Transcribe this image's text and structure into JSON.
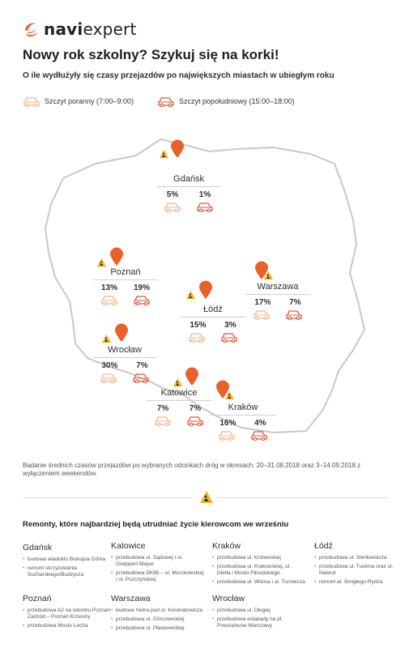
{
  "brand": {
    "name_bold": "navi",
    "name_light": "expert"
  },
  "headline": "Nowy rok szkolny? Szykuj się na korki!",
  "subheadline": "O ile wydłużyły się czasy przejazdów po największych miastach w ubiegłym roku",
  "legend": {
    "morning": "Szczyt poranny (7:00–9:00)",
    "afternoon": "Szczyt popołudniowy (15:00–18:00)"
  },
  "colors": {
    "accent": "#e8612c",
    "morning_car": "#f5b48f",
    "afternoon_car": "#e2573a",
    "warning": "#f2b823",
    "map_outline": "#c8c8c8"
  },
  "cities": [
    {
      "name": "Gdańsk",
      "morning": "5%",
      "afternoon": "1%"
    },
    {
      "name": "Poznań",
      "morning": "13%",
      "afternoon": "19%"
    },
    {
      "name": "Warszawa",
      "morning": "17%",
      "afternoon": "7%"
    },
    {
      "name": "Łódź",
      "morning": "15%",
      "afternoon": "3%"
    },
    {
      "name": "Wrocław",
      "morning": "30%",
      "afternoon": "7%"
    },
    {
      "name": "Katowice",
      "morning": "7%",
      "afternoon": "7%"
    },
    {
      "name": "Kraków",
      "morning": "16%",
      "afternoon": "4%"
    }
  ],
  "note": "Badanie średnich czasów przejazdów po wybranych odcinkach dróg w okresach: 20–31.08.2018 oraz 3–14.09.2018 z wyłączeniem weekendów.",
  "roadworks": {
    "title": "Remonty, które najbardziej będą utrudniać życie kierowcom we wrześniu",
    "groups": [
      {
        "city": "Gdańsk",
        "items": [
          "budowa wiaduktu Biskupia Górka",
          "remont skrzyżowania Sucharskiego/Budzysza"
        ]
      },
      {
        "city": "Katowice",
        "items": [
          "przebudowa ul. Sądowej i ul. Goeppert-Mayer",
          "przebudowa DK86 – ul. Murckowskiej i ul. Pszczyńskiej"
        ]
      },
      {
        "city": "Kraków",
        "items": [
          "przebudowa ul. Królewskiej",
          "przebudowa ul. Krakowskiej, ul. Dietla i Mostu Piłsudskiego",
          "przebudowa ul. Witosa i ul. Turowicza"
        ]
      },
      {
        "city": "Łódź",
        "items": [
          "przebudowa ul. Sienkiewicza",
          "przebudowa ul. Tuwima oraz ul. Nawrot",
          "remont al. Śmigłego-Rydza"
        ]
      },
      {
        "city": "Poznań",
        "items": [
          "przebudowa A2 na odcinku Poznań Zachód – Poznań Krzesiny",
          "przebudowa Mostu Lecha"
        ]
      },
      {
        "city": "Warszawa",
        "items": [
          "budowa metra pod ul. Kondratowicza",
          "przebudowa ul. Górczewskiej",
          "przebudowa ul. Płaskowickiej"
        ]
      },
      {
        "city": "Wrocław",
        "items": [
          "przebudowa ul. Długiej",
          "przebudowa estakady na pl. Powstańców Warszawy"
        ]
      }
    ]
  }
}
